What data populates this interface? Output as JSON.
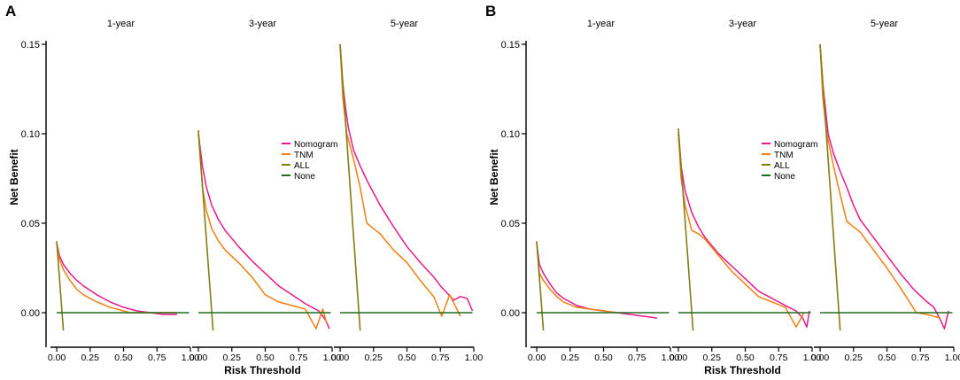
{
  "chart_data": [
    {
      "panel_label": "A",
      "type": "line",
      "ylabel": "Net Benefit",
      "xlabel": "Risk Threshold",
      "ylim": [
        -0.012,
        0.157
      ],
      "yticks": [
        0.0,
        0.05,
        0.1,
        0.15
      ],
      "ytick_labels": [
        "0.00",
        "0.05",
        "0.10",
        "0.15"
      ],
      "xlim": [
        -0.04,
        1.0
      ],
      "xticks": [
        0.0,
        0.25,
        0.5,
        0.75,
        1.0
      ],
      "xtick_labels": [
        "0.00",
        "0.25",
        "0.50",
        "0.75",
        "1.00"
      ],
      "legend_panel": 1,
      "legend": [
        {
          "name": "Nomogram",
          "color": "#e8198b"
        },
        {
          "name": "TNM",
          "color": "#f07f12"
        },
        {
          "name": "ALL",
          "color": "#7f7f12"
        },
        {
          "name": "None",
          "color": "#1e6e1e"
        }
      ],
      "subplots": [
        {
          "title": "1-year",
          "series": [
            {
              "name": "Nomogram",
              "x": [
                0.0,
                0.02,
                0.05,
                0.1,
                0.15,
                0.2,
                0.3,
                0.4,
                0.5,
                0.6,
                0.7,
                0.8,
                0.9
              ],
              "y": [
                0.039,
                0.032,
                0.027,
                0.022,
                0.018,
                0.015,
                0.01,
                0.006,
                0.003,
                0.001,
                0.0,
                -0.001,
                -0.001
              ]
            },
            {
              "name": "TNM",
              "x": [
                0.0,
                0.02,
                0.05,
                0.1,
                0.15,
                0.2,
                0.3,
                0.4,
                0.5,
                0.55,
                0.6,
                0.7,
                0.8,
                0.9
              ],
              "y": [
                0.039,
                0.03,
                0.024,
                0.018,
                0.013,
                0.01,
                0.006,
                0.003,
                0.001,
                0.0,
                0.0,
                0.0,
                0.0,
                0.0
              ]
            },
            {
              "name": "ALL",
              "x": [
                0.0,
                0.05
              ],
              "y": [
                0.04,
                -0.01
              ]
            },
            {
              "name": "None",
              "x": [
                0.0,
                0.99
              ],
              "y": [
                0.0,
                0.0
              ]
            }
          ]
        },
        {
          "title": "3-year",
          "series": [
            {
              "name": "Nomogram",
              "x": [
                0.0,
                0.03,
                0.06,
                0.1,
                0.15,
                0.2,
                0.3,
                0.4,
                0.5,
                0.6,
                0.7,
                0.8,
                0.9,
                0.95,
                0.98
              ],
              "y": [
                0.1,
                0.082,
                0.07,
                0.06,
                0.052,
                0.046,
                0.037,
                0.029,
                0.022,
                0.015,
                0.01,
                0.005,
                0.001,
                -0.004,
                -0.009
              ]
            },
            {
              "name": "TNM",
              "x": [
                0.0,
                0.03,
                0.06,
                0.1,
                0.15,
                0.2,
                0.3,
                0.4,
                0.5,
                0.6,
                0.7,
                0.8,
                0.88,
                0.93,
                0.96
              ],
              "y": [
                0.1,
                0.07,
                0.057,
                0.047,
                0.04,
                0.035,
                0.028,
                0.02,
                0.01,
                0.006,
                0.004,
                0.002,
                -0.009,
                0.002,
                -0.006
              ]
            },
            {
              "name": "ALL",
              "x": [
                0.0,
                0.11
              ],
              "y": [
                0.102,
                -0.01
              ]
            },
            {
              "name": "None",
              "x": [
                0.0,
                0.99
              ],
              "y": [
                0.0,
                0.0
              ]
            }
          ]
        },
        {
          "title": "5-year",
          "series": [
            {
              "name": "Nomogram",
              "x": [
                0.0,
                0.02,
                0.04,
                0.06,
                0.1,
                0.15,
                0.2,
                0.3,
                0.4,
                0.5,
                0.6,
                0.7,
                0.75,
                0.8,
                0.85,
                0.9,
                0.95,
                0.99
              ],
              "y": [
                0.15,
                0.128,
                0.115,
                0.104,
                0.091,
                0.082,
                0.074,
                0.06,
                0.048,
                0.037,
                0.028,
                0.02,
                0.015,
                0.011,
                0.007,
                0.009,
                0.008,
                0.001
              ]
            },
            {
              "name": "TNM",
              "x": [
                0.0,
                0.02,
                0.05,
                0.1,
                0.15,
                0.2,
                0.25,
                0.3,
                0.4,
                0.5,
                0.6,
                0.7,
                0.76,
                0.82,
                0.9
              ],
              "y": [
                0.15,
                0.12,
                0.1,
                0.086,
                0.07,
                0.05,
                0.047,
                0.044,
                0.035,
                0.028,
                0.018,
                0.009,
                -0.002,
                0.01,
                -0.002
              ]
            },
            {
              "name": "ALL",
              "x": [
                0.0,
                0.15
              ],
              "y": [
                0.15,
                -0.01
              ]
            },
            {
              "name": "None",
              "x": [
                0.0,
                0.99
              ],
              "y": [
                0.0,
                0.0
              ]
            }
          ]
        }
      ]
    },
    {
      "panel_label": "B",
      "type": "line",
      "ylabel": "Net Benefit",
      "xlabel": "Risk Threshold",
      "ylim": [
        -0.012,
        0.157
      ],
      "yticks": [
        0.0,
        0.05,
        0.1,
        0.15
      ],
      "ytick_labels": [
        "0.00",
        "0.05",
        "0.10",
        "0.15"
      ],
      "xlim": [
        -0.04,
        1.0
      ],
      "xticks": [
        0.0,
        0.25,
        0.5,
        0.75,
        1.0
      ],
      "xtick_labels": [
        "0.00",
        "0.25",
        "0.50",
        "0.75",
        "1.00"
      ],
      "legend_panel": 1,
      "legend": [
        {
          "name": "Nomogram",
          "color": "#e8198b"
        },
        {
          "name": "TNM",
          "color": "#f07f12"
        },
        {
          "name": "ALL",
          "color": "#7f7f12"
        },
        {
          "name": "None",
          "color": "#1e6e1e"
        }
      ],
      "subplots": [
        {
          "title": "1-year",
          "series": [
            {
              "name": "Nomogram",
              "x": [
                0.0,
                0.02,
                0.05,
                0.1,
                0.15,
                0.2,
                0.3,
                0.4,
                0.5,
                0.6,
                0.7,
                0.8,
                0.9
              ],
              "y": [
                0.039,
                0.027,
                0.022,
                0.016,
                0.011,
                0.008,
                0.004,
                0.002,
                0.001,
                0.0,
                -0.001,
                -0.002,
                -0.003
              ]
            },
            {
              "name": "TNM",
              "x": [
                0.0,
                0.02,
                0.05,
                0.1,
                0.15,
                0.2,
                0.3,
                0.4,
                0.5,
                0.6,
                0.65
              ],
              "y": [
                0.039,
                0.022,
                0.018,
                0.013,
                0.009,
                0.006,
                0.003,
                0.002,
                0.001,
                0.0,
                0.0
              ]
            },
            {
              "name": "ALL",
              "x": [
                0.0,
                0.05
              ],
              "y": [
                0.04,
                -0.01
              ]
            },
            {
              "name": "None",
              "x": [
                0.0,
                0.99
              ],
              "y": [
                0.0,
                0.0
              ]
            }
          ]
        },
        {
          "title": "3-year",
          "series": [
            {
              "name": "Nomogram",
              "x": [
                0.0,
                0.02,
                0.05,
                0.1,
                0.15,
                0.2,
                0.3,
                0.4,
                0.5,
                0.6,
                0.7,
                0.8,
                0.88,
                0.93,
                0.96,
                0.98
              ],
              "y": [
                0.1,
                0.082,
                0.068,
                0.056,
                0.048,
                0.042,
                0.033,
                0.026,
                0.019,
                0.012,
                0.008,
                0.004,
                0.001,
                -0.003,
                -0.008,
                0.001
              ]
            },
            {
              "name": "TNM",
              "x": [
                0.0,
                0.02,
                0.05,
                0.1,
                0.15,
                0.2,
                0.3,
                0.4,
                0.5,
                0.6,
                0.7,
                0.8,
                0.88,
                0.94
              ],
              "y": [
                0.1,
                0.075,
                0.06,
                0.046,
                0.044,
                0.041,
                0.032,
                0.023,
                0.016,
                0.009,
                0.006,
                0.003,
                -0.008,
                0.0
              ]
            },
            {
              "name": "ALL",
              "x": [
                0.0,
                0.11
              ],
              "y": [
                0.103,
                -0.01
              ]
            },
            {
              "name": "None",
              "x": [
                0.0,
                0.99
              ],
              "y": [
                0.0,
                0.0
              ]
            }
          ]
        },
        {
          "title": "5-year",
          "series": [
            {
              "name": "Nomogram",
              "x": [
                0.0,
                0.02,
                0.04,
                0.06,
                0.1,
                0.15,
                0.2,
                0.25,
                0.3,
                0.4,
                0.5,
                0.6,
                0.7,
                0.8,
                0.85,
                0.9,
                0.93,
                0.96
              ],
              "y": [
                0.15,
                0.128,
                0.114,
                0.1,
                0.089,
                0.079,
                0.07,
                0.06,
                0.052,
                0.042,
                0.032,
                0.022,
                0.013,
                0.006,
                0.003,
                -0.004,
                -0.009,
                0.001
              ]
            },
            {
              "name": "TNM",
              "x": [
                0.0,
                0.02,
                0.05,
                0.1,
                0.15,
                0.2,
                0.3,
                0.4,
                0.5,
                0.6,
                0.72,
                0.8,
                0.9
              ],
              "y": [
                0.15,
                0.12,
                0.1,
                0.082,
                0.066,
                0.051,
                0.045,
                0.035,
                0.025,
                0.014,
                0.0,
                -0.001,
                -0.003
              ]
            },
            {
              "name": "ALL",
              "x": [
                0.0,
                0.15
              ],
              "y": [
                0.15,
                -0.01
              ]
            },
            {
              "name": "None",
              "x": [
                0.0,
                0.99
              ],
              "y": [
                0.0,
                0.0
              ]
            }
          ]
        }
      ]
    }
  ]
}
